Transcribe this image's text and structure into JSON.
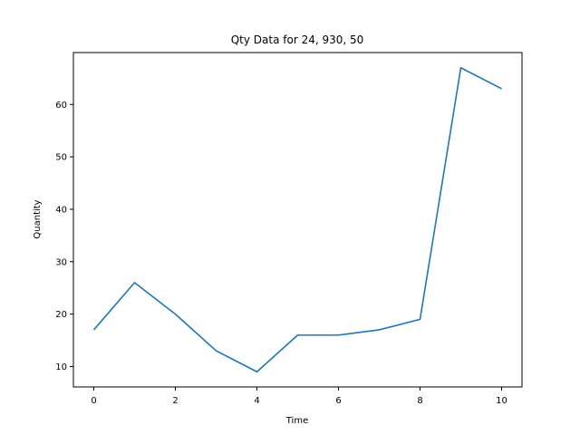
{
  "chart_data": {
    "type": "line",
    "title": "Qty Data for 24, 930, 50",
    "xlabel": "Time",
    "ylabel": "Quantity",
    "xlim": [
      -0.5,
      10.5
    ],
    "ylim": [
      6.1,
      69.9
    ],
    "xticks": [
      0,
      2,
      4,
      6,
      8,
      10
    ],
    "yticks": [
      10,
      20,
      30,
      40,
      50,
      60
    ],
    "grid": false,
    "series": [
      {
        "x": [
          0,
          1,
          2,
          3,
          4,
          5,
          6,
          7,
          8,
          9,
          10
        ],
        "values": [
          17,
          26,
          20,
          13,
          9,
          16,
          16,
          17,
          19,
          67,
          63
        ],
        "color": "#1f77b4"
      }
    ]
  }
}
